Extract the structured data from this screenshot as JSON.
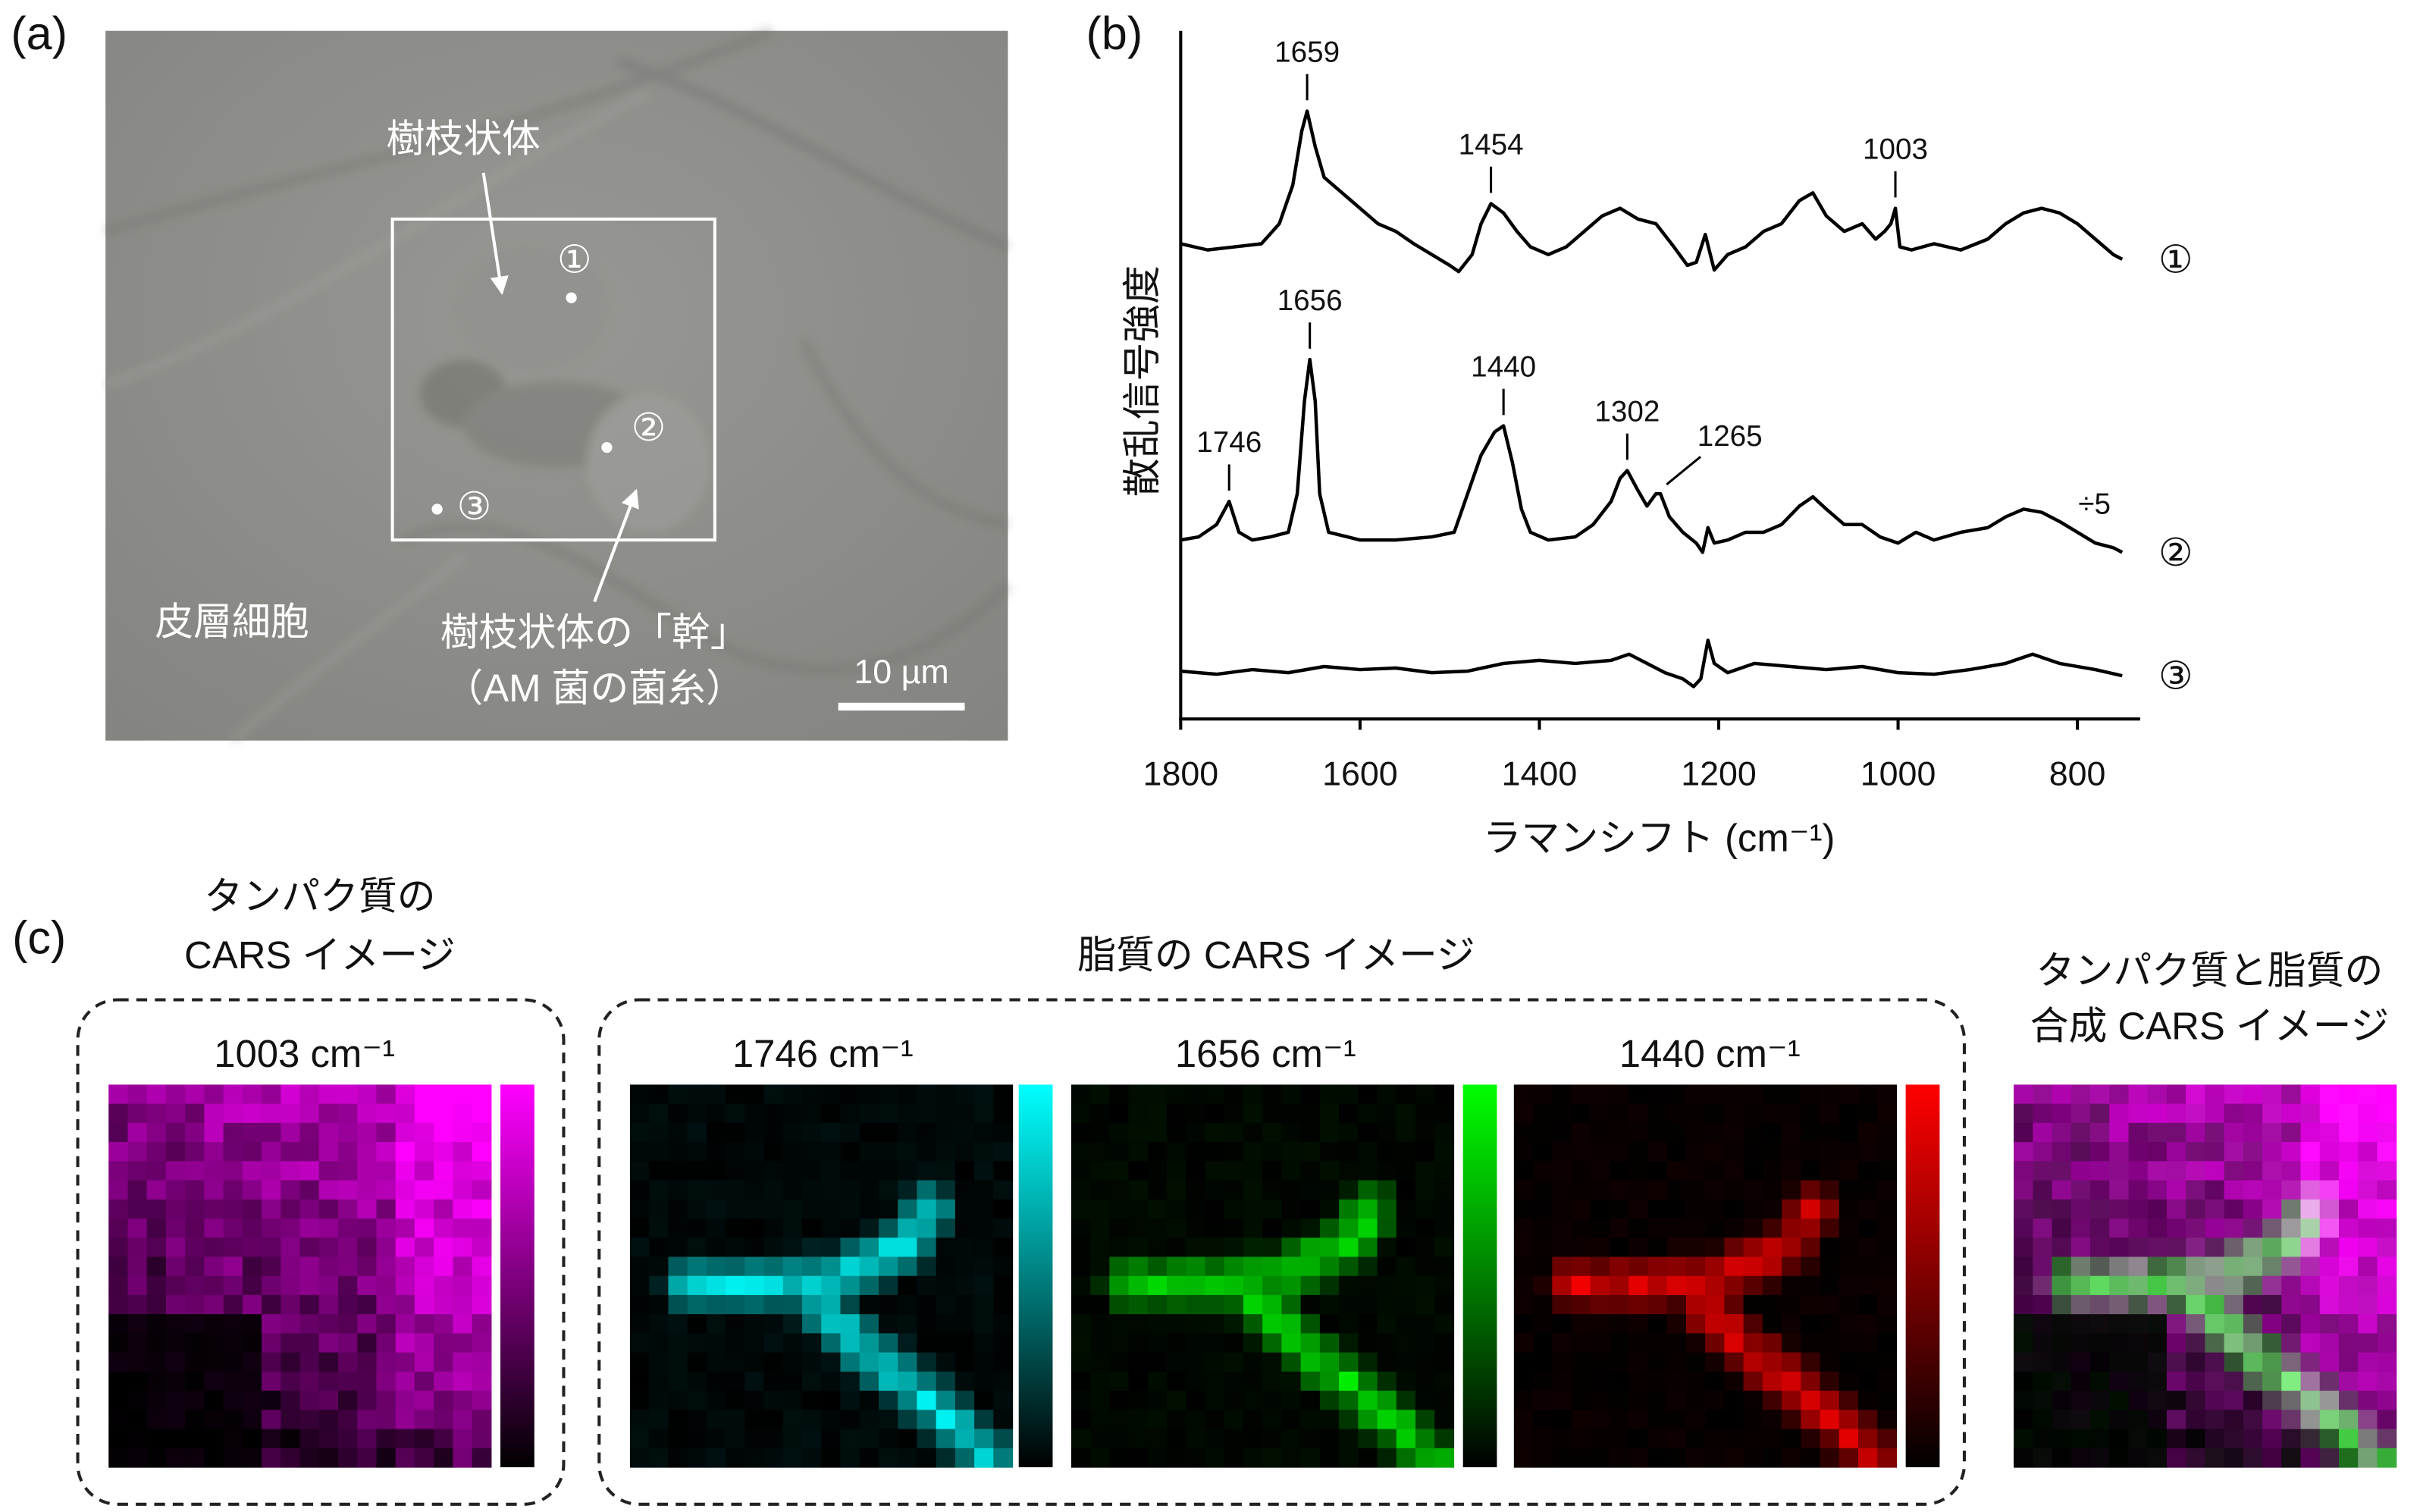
{
  "panel_a": {
    "label": "(a)",
    "arbuscule": "樹枝状体",
    "points": [
      "①",
      "②",
      "③"
    ],
    "cortex": "皮層細胞",
    "trunk": "樹枝状体の「幹」",
    "trunk_note": "（AM 菌の菌糸）",
    "scale_bar": "10 µm"
  },
  "chart_data": {
    "type": "line",
    "panel_label": "(b)",
    "xlabel": "ラマンシフト (cm⁻¹)",
    "ylabel": "散乱信号強度",
    "xlim": [
      1800,
      730
    ],
    "xticks": [
      1800,
      1600,
      1400,
      1200,
      1000,
      800
    ],
    "ylim": [
      0,
      446
    ],
    "series": [
      {
        "name": "①",
        "color": "#000000",
        "peaks": [
          1659,
          1454,
          1003
        ],
        "x": [
          1800,
          1770,
          1740,
          1710,
          1690,
          1675,
          1665,
          1659,
          1650,
          1640,
          1620,
          1600,
          1580,
          1560,
          1540,
          1520,
          1500,
          1490,
          1475,
          1465,
          1454,
          1440,
          1425,
          1410,
          1390,
          1370,
          1350,
          1330,
          1310,
          1290,
          1270,
          1250,
          1235,
          1225,
          1215,
          1205,
          1190,
          1170,
          1150,
          1130,
          1110,
          1095,
          1080,
          1060,
          1040,
          1025,
          1015,
          1008,
          1003,
          998,
          985,
          960,
          930,
          900,
          880,
          860,
          840,
          820,
          800,
          780,
          760,
          750
        ],
        "values": [
          308,
          304,
          306,
          308,
          321,
          346,
          381,
          394,
          371,
          351,
          341,
          331,
          321,
          316,
          308,
          301,
          294,
          290,
          301,
          321,
          334,
          328,
          316,
          306,
          301,
          306,
          316,
          326,
          331,
          324,
          321,
          306,
          294,
          296,
          314,
          291,
          301,
          306,
          316,
          321,
          336,
          341,
          326,
          316,
          321,
          311,
          316,
          321,
          331,
          306,
          304,
          308,
          304,
          311,
          321,
          328,
          331,
          328,
          321,
          311,
          301,
          298
        ]
      },
      {
        "name": "②",
        "color": "#000000",
        "peaks": [
          1746,
          1656,
          1440,
          1302,
          1265
        ],
        "note": "÷5",
        "x": [
          1800,
          1780,
          1760,
          1746,
          1735,
          1720,
          1700,
          1680,
          1670,
          1662,
          1656,
          1650,
          1645,
          1635,
          1600,
          1560,
          1520,
          1495,
          1480,
          1465,
          1450,
          1440,
          1430,
          1420,
          1410,
          1390,
          1360,
          1340,
          1320,
          1310,
          1302,
          1290,
          1280,
          1270,
          1265,
          1255,
          1240,
          1225,
          1218,
          1212,
          1205,
          1190,
          1170,
          1150,
          1130,
          1110,
          1095,
          1080,
          1060,
          1040,
          1020,
          1000,
          980,
          960,
          930,
          900,
          880,
          860,
          840,
          820,
          800,
          780,
          760,
          750
        ],
        "values": [
          116,
          118,
          126,
          141,
          121,
          116,
          118,
          121,
          146,
          206,
          233,
          206,
          146,
          121,
          116,
          116,
          118,
          121,
          146,
          171,
          186,
          190,
          166,
          136,
          121,
          116,
          118,
          126,
          141,
          156,
          161,
          148,
          138,
          146,
          146,
          131,
          121,
          114,
          108,
          124,
          114,
          116,
          121,
          121,
          126,
          138,
          144,
          136,
          126,
          126,
          118,
          114,
          121,
          116,
          121,
          124,
          131,
          136,
          134,
          128,
          121,
          114,
          111,
          108
        ]
      },
      {
        "name": "③",
        "color": "#000000",
        "peaks": [],
        "x": [
          1800,
          1760,
          1720,
          1680,
          1640,
          1600,
          1560,
          1520,
          1480,
          1440,
          1400,
          1360,
          1320,
          1300,
          1280,
          1260,
          1240,
          1228,
          1220,
          1212,
          1205,
          1190,
          1160,
          1120,
          1080,
          1040,
          1000,
          960,
          920,
          880,
          850,
          820,
          780,
          750
        ],
        "values": [
          31,
          29,
          32,
          30,
          34,
          32,
          33,
          30,
          31,
          36,
          38,
          36,
          38,
          42,
          36,
          30,
          26,
          21,
          26,
          51,
          36,
          30,
          36,
          34,
          32,
          34,
          30,
          29,
          32,
          36,
          42,
          36,
          32,
          28
        ]
      }
    ]
  },
  "panel_c": {
    "label": "(c)",
    "protein_title": [
      "タンパク質の",
      "CARS イメージ"
    ],
    "lipid_title": "脂質の CARS イメージ",
    "merged_title": [
      "タンパク質と脂質の",
      "合成 CARS イメージ"
    ],
    "images": [
      {
        "label": "1003 cm⁻¹",
        "color": "#ff00ff"
      },
      {
        "label": "1746 cm⁻¹",
        "color": "#00ffff"
      },
      {
        "label": "1656 cm⁻¹",
        "color": "#00ff00"
      },
      {
        "label": "1440 cm⁻¹",
        "color": "#ff0000"
      }
    ]
  }
}
